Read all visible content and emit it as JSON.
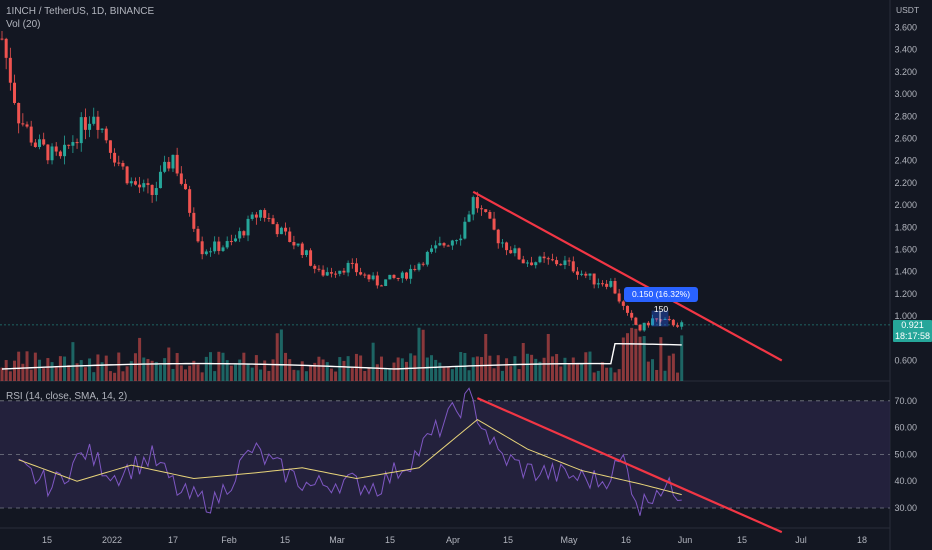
{
  "header": {
    "symbol_line": "1INCH / TetherUS, 1D, BINANCE",
    "volume_label": "Vol (20)",
    "currency": "USDT",
    "rsi_label": "RSI (14, close, SMA, 14, 2)"
  },
  "price_tag": {
    "price": "0.921",
    "countdown": "18:17:58"
  },
  "measurement": {
    "label": "0.150 (16.32%) 150"
  },
  "colors": {
    "background": "#131722",
    "up": "#26a69a",
    "down": "#ef5350",
    "trendline": "#f23645",
    "volume_ma": "#ffffff",
    "rsi": "#7e57c2",
    "rsi_ma": "#e8d47a",
    "rsi_band": "#2a2545",
    "measure": "#2962ff"
  },
  "chart_data": [
    {
      "type": "candlestick",
      "title": "1INCH / TetherUS, 1D, BINANCE",
      "y_axis": {
        "ticks": [
          "3.600",
          "3.400",
          "3.200",
          "3.000",
          "2.800",
          "2.600",
          "2.400",
          "2.200",
          "2.000",
          "1.800",
          "1.600",
          "1.400",
          "1.200",
          "1.000",
          "0.600"
        ],
        "range": [
          0.5,
          3.7
        ],
        "unit": "USDT"
      },
      "x_axis": {
        "ticks": [
          "15",
          "2022",
          "17",
          "Feb",
          "15",
          "Mar",
          "15",
          "Apr",
          "15",
          "May",
          "16",
          "Jun",
          "15",
          "Jul",
          "18"
        ]
      },
      "price_path": [
        {
          "date": "2021-12-10",
          "close": 3.5
        },
        {
          "date": "2021-12-14",
          "close": 2.8
        },
        {
          "date": "2021-12-18",
          "close": 2.55
        },
        {
          "date": "2021-12-24",
          "close": 2.4
        },
        {
          "date": "2021-12-28",
          "close": 2.65
        },
        {
          "date": "2022-01-01",
          "close": 2.85
        },
        {
          "date": "2022-01-06",
          "close": 2.45
        },
        {
          "date": "2022-01-10",
          "close": 2.2
        },
        {
          "date": "2022-01-15",
          "close": 2.1
        },
        {
          "date": "2022-01-20",
          "close": 2.45
        },
        {
          "date": "2022-01-27",
          "close": 1.6
        },
        {
          "date": "2022-02-03",
          "close": 1.65
        },
        {
          "date": "2022-02-10",
          "close": 1.95
        },
        {
          "date": "2022-02-15",
          "close": 1.75
        },
        {
          "date": "2022-02-20",
          "close": 1.6
        },
        {
          "date": "2022-02-24",
          "close": 1.38
        },
        {
          "date": "2022-03-03",
          "close": 1.45
        },
        {
          "date": "2022-03-10",
          "close": 1.3
        },
        {
          "date": "2022-03-16",
          "close": 1.35
        },
        {
          "date": "2022-03-22",
          "close": 1.55
        },
        {
          "date": "2022-03-30",
          "close": 1.75
        },
        {
          "date": "2022-04-02",
          "close": 2.05
        },
        {
          "date": "2022-04-08",
          "close": 1.7
        },
        {
          "date": "2022-04-14",
          "close": 1.5
        },
        {
          "date": "2022-04-24",
          "close": 1.48
        },
        {
          "date": "2022-05-01",
          "close": 1.32
        },
        {
          "date": "2022-05-05",
          "close": 1.3
        },
        {
          "date": "2022-05-09",
          "close": 1.0
        },
        {
          "date": "2022-05-12",
          "close": 0.88
        },
        {
          "date": "2022-05-15",
          "close": 0.97
        },
        {
          "date": "2022-05-22",
          "close": 0.921
        }
      ],
      "last_price": 0.921,
      "trendline": {
        "from": {
          "date": "2022-04-02",
          "price": 2.12
        },
        "to": {
          "date": "2022-06-15",
          "price": 0.6
        }
      },
      "measurement": {
        "price_change": 0.15,
        "percent": 16.32,
        "bars": 150
      }
    },
    {
      "type": "line",
      "title": "RSI (14, close, SMA, 14, 2)",
      "y_axis": {
        "ticks": [
          "70.00",
          "60.00",
          "50.00",
          "40.00",
          "30.00"
        ],
        "range": [
          27,
          72
        ],
        "bands": [
          30,
          50,
          70
        ]
      },
      "series": [
        {
          "values_path": [
            {
              "date": "2021-12-14",
              "v": 45
            },
            {
              "date": "2021-12-22",
              "v": 38
            },
            {
              "date": "2021-12-30",
              "v": 51
            },
            {
              "date": "2022-01-06",
              "v": 42
            },
            {
              "date": "2022-01-15",
              "v": 49
            },
            {
              "date": "2022-01-22",
              "v": 35
            },
            {
              "date": "2022-01-30",
              "v": 32
            },
            {
              "date": "2022-02-08",
              "v": 52
            },
            {
              "date": "2022-02-14",
              "v": 45
            },
            {
              "date": "2022-02-22",
              "v": 38
            },
            {
              "date": "2022-03-01",
              "v": 40
            },
            {
              "date": "2022-03-10",
              "v": 38
            },
            {
              "date": "2022-03-18",
              "v": 48
            },
            {
              "date": "2022-03-26",
              "v": 62
            },
            {
              "date": "2022-04-01",
              "v": 71
            },
            {
              "date": "2022-04-08",
              "v": 50
            },
            {
              "date": "2022-04-15",
              "v": 44
            },
            {
              "date": "2022-04-25",
              "v": 42
            },
            {
              "date": "2022-05-03",
              "v": 40
            },
            {
              "date": "2022-05-08",
              "v": 48
            },
            {
              "date": "2022-05-12",
              "v": 30
            },
            {
              "date": "2022-05-16",
              "v": 38
            },
            {
              "date": "2022-05-22",
              "v": 36
            }
          ]
        },
        {
          "values_path": [
            {
              "date": "2021-12-14",
              "v": 48
            },
            {
              "date": "2021-12-28",
              "v": 40
            },
            {
              "date": "2022-01-10",
              "v": 46
            },
            {
              "date": "2022-01-25",
              "v": 41
            },
            {
              "date": "2022-02-08",
              "v": 43
            },
            {
              "date": "2022-02-20",
              "v": 45
            },
            {
              "date": "2022-03-05",
              "v": 41
            },
            {
              "date": "2022-03-20",
              "v": 45
            },
            {
              "date": "2022-04-03",
              "v": 63
            },
            {
              "date": "2022-04-15",
              "v": 52
            },
            {
              "date": "2022-04-28",
              "v": 44
            },
            {
              "date": "2022-05-12",
              "v": 39
            },
            {
              "date": "2022-05-22",
              "v": 35
            }
          ]
        }
      ],
      "trendline": {
        "from": {
          "date": "2022-04-03",
          "v": 71
        },
        "to": {
          "date": "2022-06-15",
          "v": 21
        }
      }
    }
  ]
}
